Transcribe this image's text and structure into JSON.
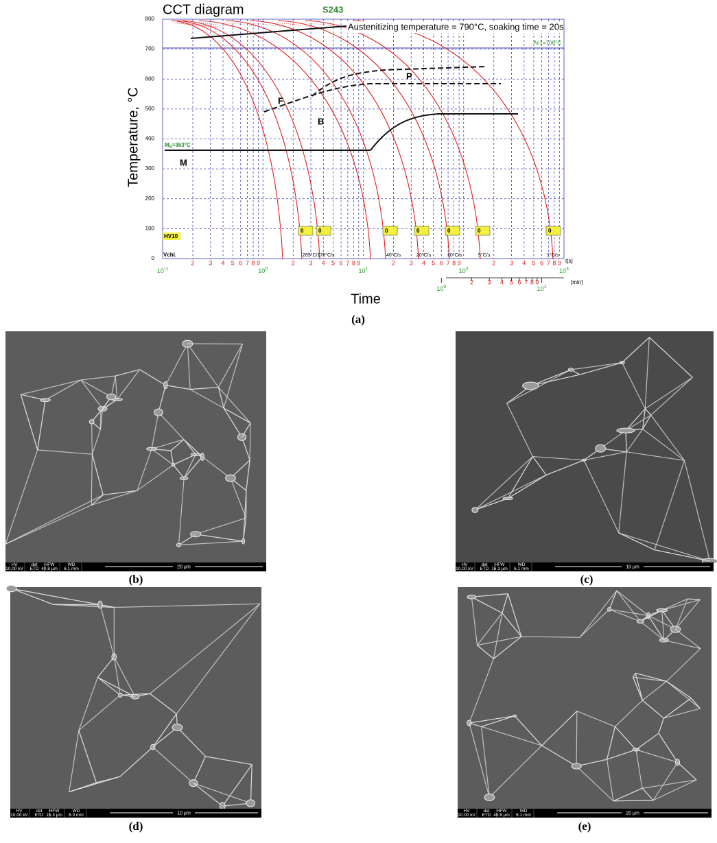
{
  "cct": {
    "title": "CCT diagram",
    "code": "S243",
    "note": "Austenitizing temperature = 790°C, soaking time = 20s",
    "ac1": "Ac1=706°C",
    "ms": {
      "main": "M",
      "sub": "S",
      "rest": "=363°C"
    },
    "ylabel": "Temperature, °C",
    "xlabel": "Time",
    "caption": "(a)",
    "ylim": [
      0,
      800
    ],
    "yticks": [
      0,
      100,
      200,
      300,
      400,
      500,
      600,
      700,
      800
    ],
    "xlim": [
      0.1,
      1000
    ],
    "log_x": true,
    "grid": true,
    "xticks": [
      {
        "value": 0.1,
        "label": "10",
        "exponent": "-1"
      },
      {
        "value": 1,
        "label": "10",
        "exponent": "0"
      },
      {
        "value": 10,
        "label": "10",
        "exponent": "1"
      },
      {
        "value": 100,
        "label": "10",
        "exponent": "2"
      },
      {
        "value": 1000,
        "label": "10",
        "exponent": "3"
      }
    ],
    "minor_xticks": [
      {
        "value": 0.2,
        "label": "2"
      },
      {
        "value": 0.3,
        "label": "3"
      },
      {
        "value": 0.4,
        "label": "4"
      },
      {
        "value": 0.5,
        "label": "5"
      },
      {
        "value": 0.6,
        "label": "6"
      },
      {
        "value": 0.7,
        "label": "7"
      },
      {
        "value": 0.8,
        "label": "8"
      },
      {
        "value": 0.9,
        "label": "9"
      },
      2,
      3,
      4,
      5,
      6,
      7,
      8,
      9,
      {
        "value": 20,
        "label": "2"
      },
      {
        "value": 30,
        "label": "3"
      },
      {
        "value": 40,
        "label": "4"
      },
      {
        "value": 50,
        "label": "5"
      },
      {
        "value": 60,
        "label": "6"
      },
      {
        "value": 70,
        "label": "7"
      },
      {
        "value": 80,
        "label": "8"
      },
      {
        "value": 90,
        "label": "9"
      },
      {
        "value": 200,
        "label": "2"
      },
      {
        "value": 300,
        "label": "3"
      },
      {
        "value": 400,
        "label": "4"
      },
      {
        "value": 500,
        "label": "5"
      },
      {
        "value": 600,
        "label": "6"
      },
      {
        "value": 700,
        "label": "7"
      },
      {
        "value": 800,
        "label": "8"
      },
      {
        "value": 900,
        "label": "9"
      }
    ],
    "x_unit": "t[s]",
    "min_unit": "[min]",
    "min_ticks": [
      {
        "value": 1,
        "label": "10",
        "exponent": "0"
      },
      {
        "value": 10,
        "label": "10",
        "exponent": "1"
      }
    ],
    "min_minor_ticks": [
      2,
      3,
      4,
      5,
      6,
      7,
      8,
      9
    ],
    "hardness_label": "HV10",
    "hardness": [
      "0",
      "0",
      "0",
      "0",
      "0",
      "0",
      "0"
    ],
    "rate_label": "Vchl.",
    "rates": [
      "265°C/178°C/s",
      "40°C/s",
      "20°C/s",
      "10°C/s",
      "5°C/s",
      "1°C/s"
    ],
    "regions": [
      "F",
      "P",
      "B",
      "M"
    ]
  },
  "sem_headers": [
    "HV",
    "det",
    "HFW",
    "WD"
  ],
  "sem": [
    {
      "caption": "(b)",
      "values": [
        "10.00 kV",
        "ETD",
        "40.8 μm",
        "6.1 mm"
      ],
      "scale": "20 μm"
    },
    {
      "caption": "(c)",
      "values": [
        "10.00 kV",
        "ETD",
        "16.3 μm",
        "6.1 mm"
      ],
      "scale": "10 μm"
    },
    {
      "caption": "(d)",
      "values": [
        "10.00 kV",
        "ETD",
        "16.3 μm",
        "6.0 mm"
      ],
      "scale": "10 μm"
    },
    {
      "caption": "(e)",
      "values": [
        "10.00 kV",
        "ETD",
        "40.8 μm",
        "6.1 mm"
      ],
      "scale": "20 μm"
    }
  ]
}
